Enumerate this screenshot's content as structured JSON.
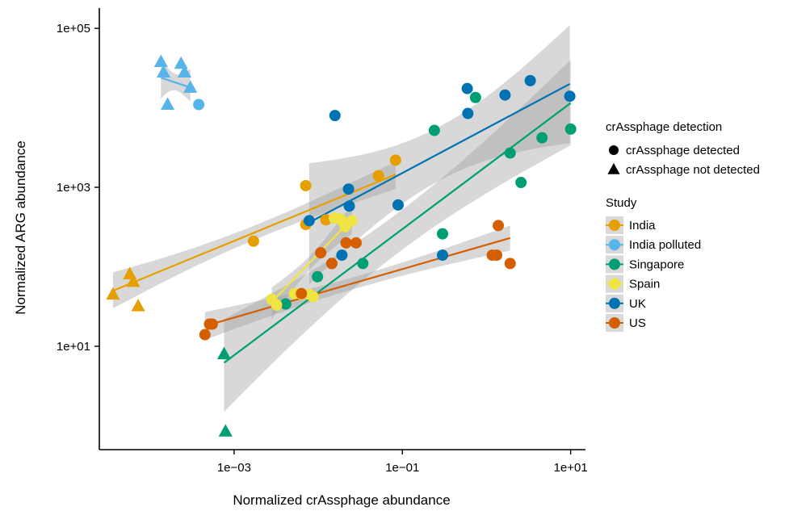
{
  "chart_data": {
    "type": "scatter",
    "title": "",
    "xlabel": "Normalized crAssphage abundance",
    "ylabel": "Normalized ARG abundance",
    "x_scale": "log10",
    "y_scale": "log10",
    "xlim": [
      2.5e-05,
      15
    ],
    "ylim": [
      0.5,
      180000
    ],
    "x_ticks": [
      {
        "value": 0.001,
        "label": "1e−03"
      },
      {
        "value": 0.1,
        "label": "1e−01"
      },
      {
        "value": 10,
        "label": "1e+01"
      }
    ],
    "y_ticks": [
      {
        "value": 10,
        "label": "1e+01"
      },
      {
        "value": 1000,
        "label": "1e+03"
      },
      {
        "value": 100000,
        "label": "1e+05"
      }
    ],
    "grid": false,
    "legend_position": "right",
    "shape_legend": {
      "title": "crAssphage detection",
      "items": [
        {
          "shape": "circle",
          "label": "crAssphage detected"
        },
        {
          "shape": "triangle",
          "label": "crAssphage not detected"
        }
      ]
    },
    "color_legend": {
      "title": "Study",
      "items": [
        {
          "key": "india",
          "label": "India",
          "color": "#E69F00"
        },
        {
          "key": "india_polluted",
          "label": "India polluted",
          "color": "#56B4E9"
        },
        {
          "key": "singapore",
          "label": "Singapore",
          "color": "#009E73"
        },
        {
          "key": "spain",
          "label": "Spain",
          "color": "#F0E442"
        },
        {
          "key": "uk",
          "label": "UK",
          "color": "#0072B2"
        },
        {
          "key": "us",
          "label": "US",
          "color": "#D55E00"
        }
      ]
    },
    "series": [
      {
        "key": "india",
        "name": "India",
        "color": "#E69F00",
        "points": [
          {
            "x": 3.63e-05,
            "y": 45,
            "shape": "triangle"
          },
          {
            "x": 5.75e-05,
            "y": 81,
            "shape": "triangle"
          },
          {
            "x": 6.31e-05,
            "y": 65,
            "shape": "triangle"
          },
          {
            "x": 7.24e-05,
            "y": 32,
            "shape": "triangle"
          },
          {
            "x": 0.0017,
            "y": 210,
            "shape": "circle"
          },
          {
            "x": 0.0071,
            "y": 1050,
            "shape": "circle"
          },
          {
            "x": 0.0071,
            "y": 340,
            "shape": "circle"
          },
          {
            "x": 0.0123,
            "y": 390,
            "shape": "circle"
          },
          {
            "x": 0.052,
            "y": 1400,
            "shape": "circle"
          },
          {
            "x": 0.083,
            "y": 2200,
            "shape": "circle"
          }
        ],
        "fit": {
          "x": [
            3.63e-05,
            0.083
          ],
          "y": [
            50,
            1450
          ],
          "band_lower": [
            30,
            950
          ],
          "band_upper": [
            85,
            2100
          ]
        }
      },
      {
        "key": "india_polluted",
        "name": "India polluted",
        "color": "#56B4E9",
        "points": [
          {
            "x": 0.000135,
            "y": 38000,
            "shape": "triangle"
          },
          {
            "x": 0.000145,
            "y": 28000,
            "shape": "triangle"
          },
          {
            "x": 0.000162,
            "y": 11000,
            "shape": "triangle"
          },
          {
            "x": 0.000234,
            "y": 36000,
            "shape": "triangle"
          },
          {
            "x": 0.000257,
            "y": 28000,
            "shape": "triangle"
          },
          {
            "x": 0.000302,
            "y": 18000,
            "shape": "triangle"
          },
          {
            "x": 0.00038,
            "y": 11000,
            "shape": "circle"
          }
        ],
        "fit": {
          "x": [
            0.000135,
            0.000302
          ],
          "y": [
            24000,
            18000
          ],
          "band_lower": [
            13000,
            12000
          ],
          "band_upper": [
            42000,
            31000
          ]
        }
      },
      {
        "key": "singapore",
        "name": "Singapore",
        "color": "#009E73",
        "points": [
          {
            "x": 0.00076,
            "y": 8,
            "shape": "triangle"
          },
          {
            "x": 0.00079,
            "y": 0.85,
            "shape": "triangle"
          },
          {
            "x": 0.0041,
            "y": 34,
            "shape": "circle"
          },
          {
            "x": 0.0098,
            "y": 75,
            "shape": "circle"
          },
          {
            "x": 0.0145,
            "y": 110,
            "shape": "circle"
          },
          {
            "x": 0.0339,
            "y": 110,
            "shape": "circle"
          },
          {
            "x": 0.24,
            "y": 5200,
            "shape": "circle"
          },
          {
            "x": 0.3,
            "y": 260,
            "shape": "circle"
          },
          {
            "x": 0.74,
            "y": 13500,
            "shape": "circle"
          },
          {
            "x": 1.91,
            "y": 2700,
            "shape": "circle"
          },
          {
            "x": 2.57,
            "y": 1150,
            "shape": "circle"
          },
          {
            "x": 4.57,
            "y": 4200,
            "shape": "circle"
          },
          {
            "x": 10.0,
            "y": 5400,
            "shape": "circle"
          }
        ],
        "fit": {
          "x": [
            0.00076,
            10.0
          ],
          "y": [
            6.2,
            11500
          ],
          "band_lower": [
            1.5,
            3400
          ],
          "band_upper": [
            22,
            40000
          ]
        }
      },
      {
        "key": "spain",
        "name": "Spain",
        "color": "#F0E442",
        "points": [
          {
            "x": 0.0028,
            "y": 39,
            "shape": "circle"
          },
          {
            "x": 0.0032,
            "y": 33,
            "shape": "circle"
          },
          {
            "x": 0.0052,
            "y": 46,
            "shape": "circle"
          },
          {
            "x": 0.0063,
            "y": 45,
            "shape": "circle"
          },
          {
            "x": 0.0078,
            "y": 45,
            "shape": "circle"
          },
          {
            "x": 0.0087,
            "y": 42,
            "shape": "circle"
          },
          {
            "x": 0.0155,
            "y": 410,
            "shape": "circle"
          },
          {
            "x": 0.0182,
            "y": 400,
            "shape": "circle"
          },
          {
            "x": 0.02,
            "y": 360,
            "shape": "circle"
          },
          {
            "x": 0.0209,
            "y": 320,
            "shape": "circle"
          },
          {
            "x": 0.0251,
            "y": 380,
            "shape": "circle"
          }
        ],
        "fit": {
          "x": [
            0.0028,
            0.0251
          ],
          "y": [
            36,
            400
          ],
          "band_lower": [
            22,
            260
          ],
          "band_upper": [
            55,
            620
          ]
        }
      },
      {
        "key": "uk",
        "name": "UK",
        "color": "#0072B2",
        "points": [
          {
            "x": 0.0078,
            "y": 380,
            "shape": "circle"
          },
          {
            "x": 0.0158,
            "y": 8000,
            "shape": "circle"
          },
          {
            "x": 0.0191,
            "y": 140,
            "shape": "circle"
          },
          {
            "x": 0.0229,
            "y": 950,
            "shape": "circle"
          },
          {
            "x": 0.0234,
            "y": 580,
            "shape": "circle"
          },
          {
            "x": 0.089,
            "y": 600,
            "shape": "circle"
          },
          {
            "x": 0.3,
            "y": 140,
            "shape": "circle"
          },
          {
            "x": 0.59,
            "y": 17500,
            "shape": "circle"
          },
          {
            "x": 0.6,
            "y": 8500,
            "shape": "circle"
          },
          {
            "x": 1.66,
            "y": 14500,
            "shape": "circle"
          },
          {
            "x": 3.31,
            "y": 22000,
            "shape": "circle"
          },
          {
            "x": 9.77,
            "y": 14000,
            "shape": "circle"
          }
        ],
        "fit": {
          "x": [
            0.0078,
            9.77
          ],
          "y": [
            360,
            20000
          ],
          "band_lower": [
            60,
            3600
          ],
          "band_upper": [
            2000,
            110000
          ]
        }
      },
      {
        "key": "us",
        "name": "US",
        "color": "#D55E00",
        "points": [
          {
            "x": 0.00045,
            "y": 14,
            "shape": "circle"
          },
          {
            "x": 0.00051,
            "y": 19,
            "shape": "circle"
          },
          {
            "x": 0.00055,
            "y": 19,
            "shape": "circle"
          },
          {
            "x": 0.00631,
            "y": 46,
            "shape": "circle"
          },
          {
            "x": 0.0107,
            "y": 150,
            "shape": "circle"
          },
          {
            "x": 0.0145,
            "y": 110,
            "shape": "circle"
          },
          {
            "x": 0.0214,
            "y": 200,
            "shape": "circle"
          },
          {
            "x": 0.0282,
            "y": 200,
            "shape": "circle"
          },
          {
            "x": 1.17,
            "y": 140,
            "shape": "circle"
          },
          {
            "x": 1.32,
            "y": 140,
            "shape": "circle"
          },
          {
            "x": 1.38,
            "y": 330,
            "shape": "circle"
          },
          {
            "x": 1.91,
            "y": 110,
            "shape": "circle"
          }
        ],
        "fit": {
          "x": [
            0.00045,
            1.91
          ],
          "y": [
            18,
            230
          ],
          "band_lower": [
            12,
            160
          ],
          "band_upper": [
            27,
            330
          ]
        }
      }
    ]
  }
}
